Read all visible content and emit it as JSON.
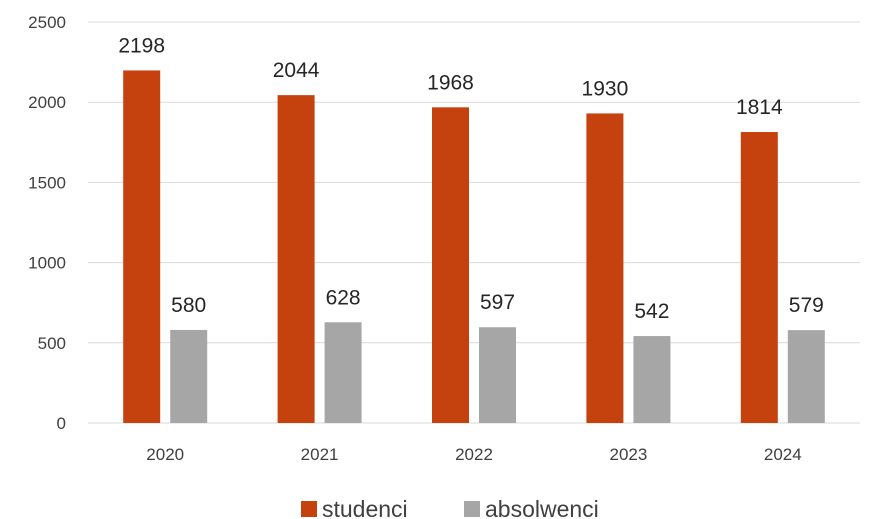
{
  "chart_data": {
    "type": "bar",
    "categories": [
      "2020",
      "2021",
      "2022",
      "2023",
      "2024"
    ],
    "series": [
      {
        "name": "studenci",
        "values": [
          2198,
          2044,
          1968,
          1930,
          1814
        ],
        "color": "#C5420F"
      },
      {
        "name": "absolwenci",
        "values": [
          580,
          628,
          597,
          542,
          579
        ],
        "color": "#A6A6A6"
      }
    ],
    "y_ticks": [
      "0",
      "500",
      "1000",
      "1500",
      "2000",
      "2500"
    ],
    "ylim": [
      0,
      2500
    ],
    "grid": true,
    "legend_position": "bottom",
    "data_labels": true
  }
}
